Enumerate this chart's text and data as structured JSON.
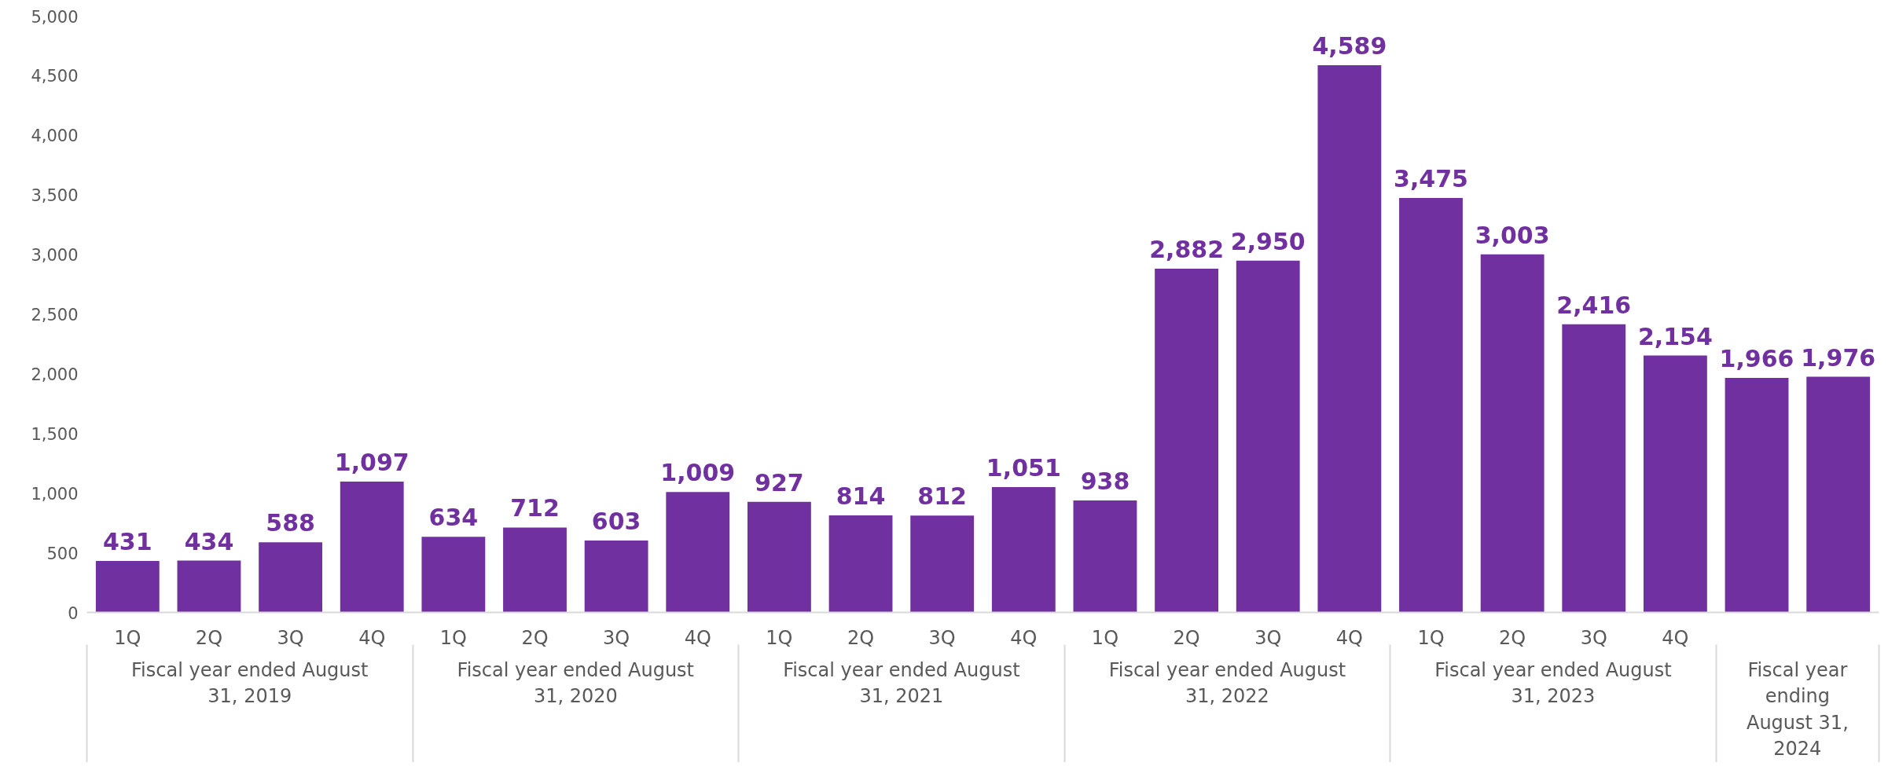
{
  "chart_data": {
    "type": "bar",
    "categories": [
      "1Q",
      "2Q",
      "3Q",
      "4Q",
      "1Q",
      "2Q",
      "3Q",
      "4Q",
      "1Q",
      "2Q",
      "3Q",
      "4Q",
      "1Q",
      "2Q",
      "3Q",
      "4Q",
      "1Q",
      "2Q",
      "3Q",
      "4Q",
      null,
      null
    ],
    "values": [
      431,
      434,
      588,
      1097,
      634,
      712,
      603,
      1009,
      927,
      814,
      812,
      1051,
      938,
      2882,
      2950,
      4589,
      3475,
      3003,
      2416,
      2154,
      1966,
      1976
    ],
    "color": "#7030a0",
    "ylim": [
      0,
      5000
    ],
    "yticks": [
      {
        "value": 0,
        "label": "0"
      },
      {
        "value": 500,
        "label": "500"
      },
      {
        "value": 1000,
        "label": "1,000"
      },
      {
        "value": 1500,
        "label": "1,500"
      },
      {
        "value": 2000,
        "label": "2,000"
      },
      {
        "value": 2500,
        "label": "2,500"
      },
      {
        "value": 3000,
        "label": "3,000"
      },
      {
        "value": 3500,
        "label": "3,500"
      },
      {
        "value": 4000,
        "label": "4,000"
      },
      {
        "value": 4500,
        "label": "4,500"
      },
      {
        "value": 5000,
        "label": "5,000"
      }
    ],
    "value_labels": [
      "431",
      "434",
      "588",
      "1,097",
      "634",
      "712",
      "603",
      "1,009",
      "927",
      "814",
      "812",
      "1,051",
      "938",
      "2,882",
      "2,950",
      "4,589",
      "3,475",
      "3,003",
      "2,416",
      "2,154",
      "1,966",
      "1,976"
    ],
    "annotations": [
      "Fiscal year ended August 31, 2019",
      "Fiscal year ended August 31, 2020",
      "Fiscal year ended August 31, 2021",
      "Fiscal year ended August 31, 2022",
      "Fiscal year ended August 31, 2023",
      "Fiscal year ending August 31, 2024"
    ],
    "grid": false
  }
}
